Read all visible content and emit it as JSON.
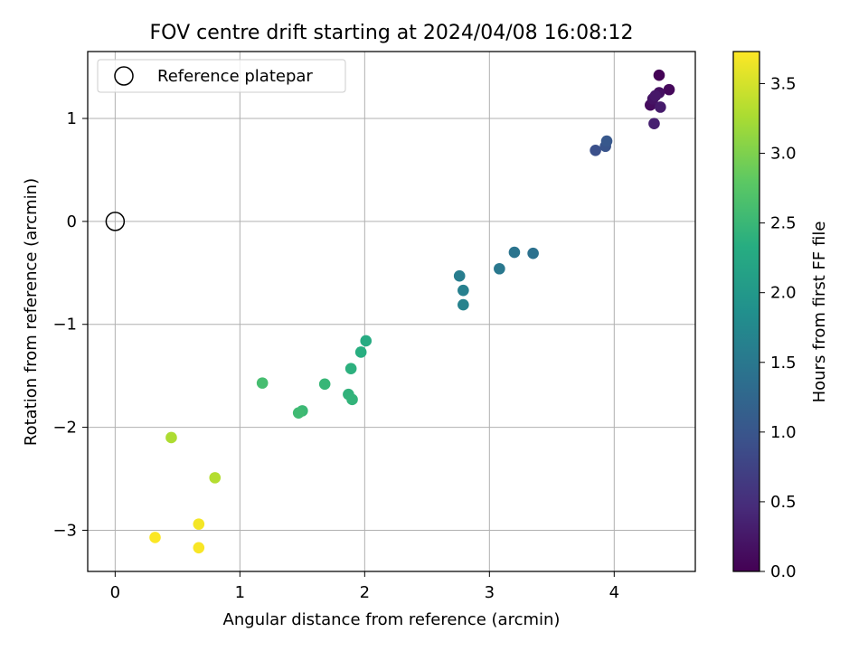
{
  "chart_data": {
    "type": "scatter",
    "title": "FOV centre drift starting at 2024/04/08 16:08:12",
    "xlabel": "Angular distance from reference (arcmin)",
    "ylabel": "Rotation from reference (arcmin)",
    "xlim": [
      -0.22,
      4.65
    ],
    "ylim": [
      -3.4,
      1.65
    ],
    "xticks": [
      0,
      1,
      2,
      3,
      4
    ],
    "yticks": [
      -3,
      -2,
      -1,
      0,
      1
    ],
    "grid": true,
    "legend": {
      "position": "top-left",
      "entries": [
        "Reference platepar"
      ]
    },
    "reference_point": {
      "x": 0,
      "y": 0,
      "label": "Reference platepar"
    },
    "colorbar": {
      "label": "Hours from first FF file",
      "colormap": "viridis",
      "range": [
        0,
        3.73
      ],
      "ticks": [
        0.0,
        0.5,
        1.0,
        1.5,
        2.0,
        2.5,
        3.0,
        3.5
      ]
    },
    "series": [
      {
        "points": [
          {
            "x": 4.36,
            "y": 1.42,
            "c": 0.02
          },
          {
            "x": 4.44,
            "y": 1.28,
            "c": 0.08
          },
          {
            "x": 4.29,
            "y": 1.13,
            "c": 0.12
          },
          {
            "x": 4.36,
            "y": 1.25,
            "c": 0.16
          },
          {
            "x": 4.31,
            "y": 1.19,
            "c": 0.2
          },
          {
            "x": 4.33,
            "y": 1.22,
            "c": 0.24
          },
          {
            "x": 4.37,
            "y": 1.11,
            "c": 0.28
          },
          {
            "x": 4.32,
            "y": 0.95,
            "c": 0.34
          },
          {
            "x": 3.85,
            "y": 0.69,
            "c": 0.92
          },
          {
            "x": 3.93,
            "y": 0.73,
            "c": 0.98
          },
          {
            "x": 3.94,
            "y": 0.78,
            "c": 1.04
          },
          {
            "x": 3.35,
            "y": -0.31,
            "c": 1.4
          },
          {
            "x": 3.2,
            "y": -0.3,
            "c": 1.45
          },
          {
            "x": 3.08,
            "y": -0.46,
            "c": 1.5
          },
          {
            "x": 2.76,
            "y": -0.53,
            "c": 1.58
          },
          {
            "x": 2.79,
            "y": -0.67,
            "c": 1.62
          },
          {
            "x": 2.79,
            "y": -0.81,
            "c": 1.66
          },
          {
            "x": 2.01,
            "y": -1.16,
            "c": 2.3
          },
          {
            "x": 1.97,
            "y": -1.27,
            "c": 2.34
          },
          {
            "x": 1.89,
            "y": -1.43,
            "c": 2.38
          },
          {
            "x": 1.87,
            "y": -1.68,
            "c": 2.42
          },
          {
            "x": 1.9,
            "y": -1.73,
            "c": 2.44
          },
          {
            "x": 1.68,
            "y": -1.58,
            "c": 2.48
          },
          {
            "x": 1.5,
            "y": -1.84,
            "c": 2.52
          },
          {
            "x": 1.47,
            "y": -1.86,
            "c": 2.55
          },
          {
            "x": 1.18,
            "y": -1.57,
            "c": 2.6
          },
          {
            "x": 0.45,
            "y": -2.1,
            "c": 3.28
          },
          {
            "x": 0.8,
            "y": -2.49,
            "c": 3.32
          },
          {
            "x": 0.67,
            "y": -2.94,
            "c": 3.68
          },
          {
            "x": 0.32,
            "y": -3.07,
            "c": 3.72
          },
          {
            "x": 0.67,
            "y": -3.17,
            "c": 3.7
          }
        ]
      }
    ]
  }
}
